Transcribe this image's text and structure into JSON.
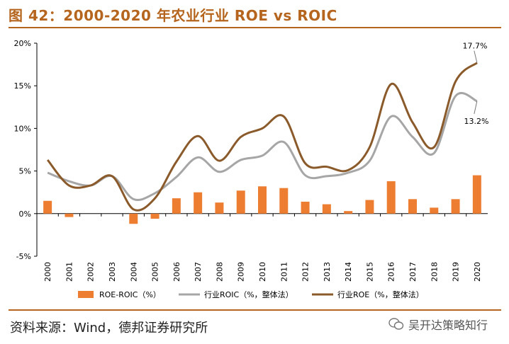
{
  "figure": {
    "title": "图 42：2000-2020 年农业行业 ROE vs ROIC",
    "source": "资料来源：Wind，德邦证券研究所",
    "watermark": "吴开达策略知行"
  },
  "chart_data": {
    "type": "bar",
    "categories": [
      "2000",
      "2001",
      "2002",
      "2003",
      "2004",
      "2005",
      "2006",
      "2007",
      "2008",
      "2009",
      "2010",
      "2011",
      "2012",
      "2013",
      "2014",
      "2015",
      "2016",
      "2017",
      "2018",
      "2019",
      "2020"
    ],
    "yticks": [
      "20%",
      "15%",
      "10%",
      "5%",
      "0%",
      "-5%"
    ],
    "ylim": [
      -5,
      20
    ],
    "series": [
      {
        "name": "ROE-ROIC（%）",
        "kind": "bar",
        "color": "#ed7d31",
        "values": [
          1.5,
          -0.4,
          0,
          0,
          -1.2,
          -0.6,
          1.8,
          2.5,
          1.3,
          2.7,
          3.2,
          3.0,
          1.4,
          1.1,
          0.3,
          1.6,
          3.8,
          1.7,
          0.7,
          1.7,
          4.5
        ]
      },
      {
        "name": "行业ROIC（%，整体法）",
        "kind": "line",
        "color": "#a6a6a6",
        "values": [
          4.8,
          3.8,
          3.3,
          4.4,
          1.7,
          2.4,
          4.3,
          6.6,
          4.9,
          6.3,
          6.8,
          8.4,
          4.5,
          4.4,
          4.8,
          6.2,
          11.4,
          9.0,
          7.1,
          13.8,
          13.2
        ]
      },
      {
        "name": "行业ROE（%，整体法）",
        "kind": "line",
        "color": "#8b5a2b",
        "values": [
          6.3,
          3.3,
          3.3,
          4.4,
          0.5,
          1.8,
          6.1,
          9.1,
          6.2,
          9.0,
          10.0,
          11.4,
          5.9,
          5.5,
          5.1,
          7.8,
          15.2,
          10.7,
          7.8,
          15.5,
          17.7
        ]
      }
    ],
    "annotations": [
      {
        "text": "17.7%",
        "series": 2,
        "index": 20
      },
      {
        "text": "13.2%",
        "series": 1,
        "index": 20
      }
    ],
    "legend_position": "bottom"
  }
}
